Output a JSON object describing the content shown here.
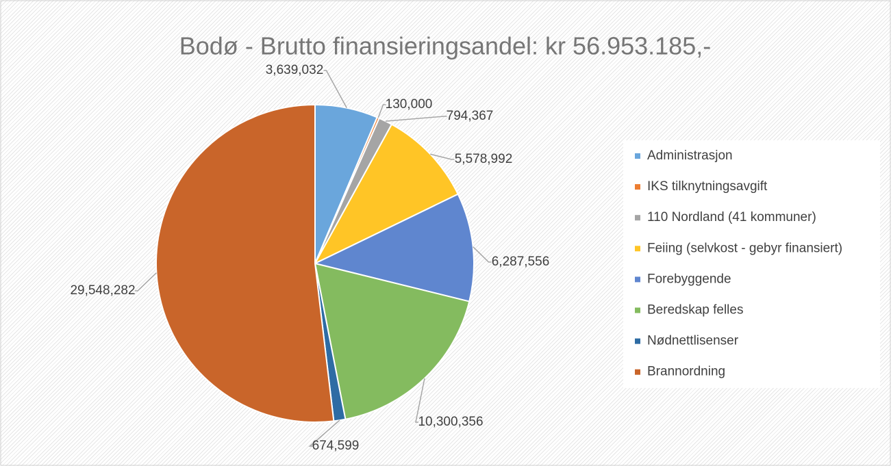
{
  "chart_data": {
    "type": "pie",
    "title": "Bodø - Brutto finansieringsandel: kr 56.953.185,-",
    "categories": [
      "Administrasjon",
      "IKS tilknytningsavgift",
      "110 Nordland (41 kommuner)",
      "Feiing (selvkost - gebyr finansiert)",
      "Forebyggende",
      "Beredskap felles",
      "Nødnettlisenser",
      "Brannordning"
    ],
    "values": [
      3639032,
      130000,
      794367,
      5578992,
      6287556,
      10300356,
      674599,
      29548282
    ],
    "value_labels": [
      "3,639,032",
      "130,000",
      "794,367",
      "5,578,992",
      "6,287,556",
      "10,300,356",
      "674,599",
      "29,548,282"
    ],
    "colors": [
      "#6aa6dc",
      "#ed7d31",
      "#a5a5a5",
      "#ffc526",
      "#5f86cf",
      "#84bb5f",
      "#2e6ca4",
      "#c9652a"
    ],
    "legend": "right"
  }
}
